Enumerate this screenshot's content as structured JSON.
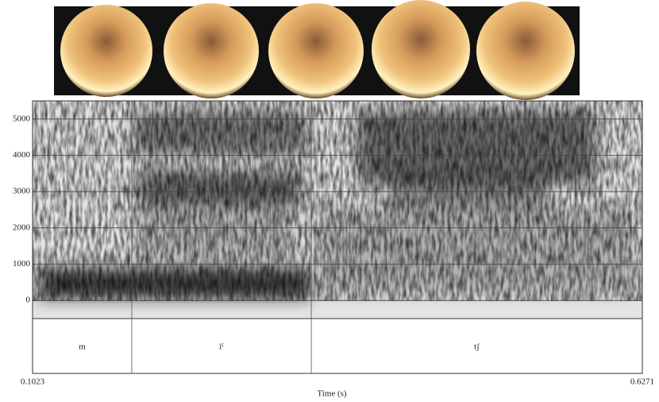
{
  "chart_data": {
    "type": "spectrogram",
    "xlabel": "Time (s)",
    "xlim": [
      0.1023,
      0.6271
    ],
    "xticks": [
      0.1023,
      0.6271
    ],
    "ylim": [
      -500,
      5500
    ],
    "yticks": [
      0,
      1000,
      2000,
      3000,
      4000,
      5000
    ],
    "grid": true,
    "segments": [
      {
        "label": "m",
        "start": 0.1023,
        "end": 0.1877
      },
      {
        "label": "iˤ",
        "start": 0.1877,
        "end": 0.3422
      },
      {
        "label": "tʃ",
        "start": 0.3422,
        "end": 0.6271
      }
    ]
  }
}
